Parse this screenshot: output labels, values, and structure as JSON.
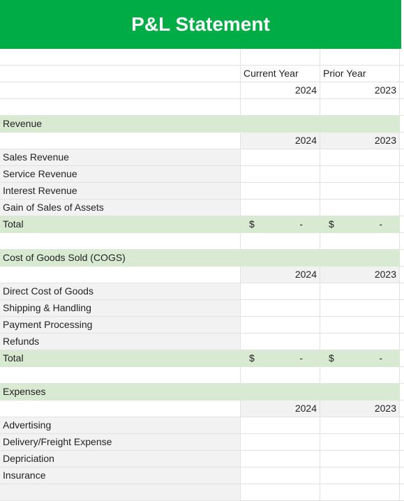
{
  "title": "P&L Statement",
  "headers": {
    "current_label": "Current Year",
    "prior_label": "Prior Year",
    "current_year": "2024",
    "prior_year": "2023"
  },
  "currency": "$",
  "blank_total": "-",
  "sections": {
    "revenue": {
      "name": "Revenue",
      "items": [
        "Sales Revenue",
        "Service Revenue",
        "Interest Revenue",
        "Gain of Sales of Assets"
      ],
      "total": "Total"
    },
    "cogs": {
      "name": "Cost of Goods Sold (COGS)",
      "items": [
        "Direct Cost of Goods",
        "Shipping & Handling",
        "Payment Processing",
        "Refunds"
      ],
      "total": "Total"
    },
    "expenses": {
      "name": "Expenses",
      "items": [
        "Advertising",
        "Delivery/Freight Expense",
        "Depriciation",
        "Insurance"
      ]
    }
  }
}
